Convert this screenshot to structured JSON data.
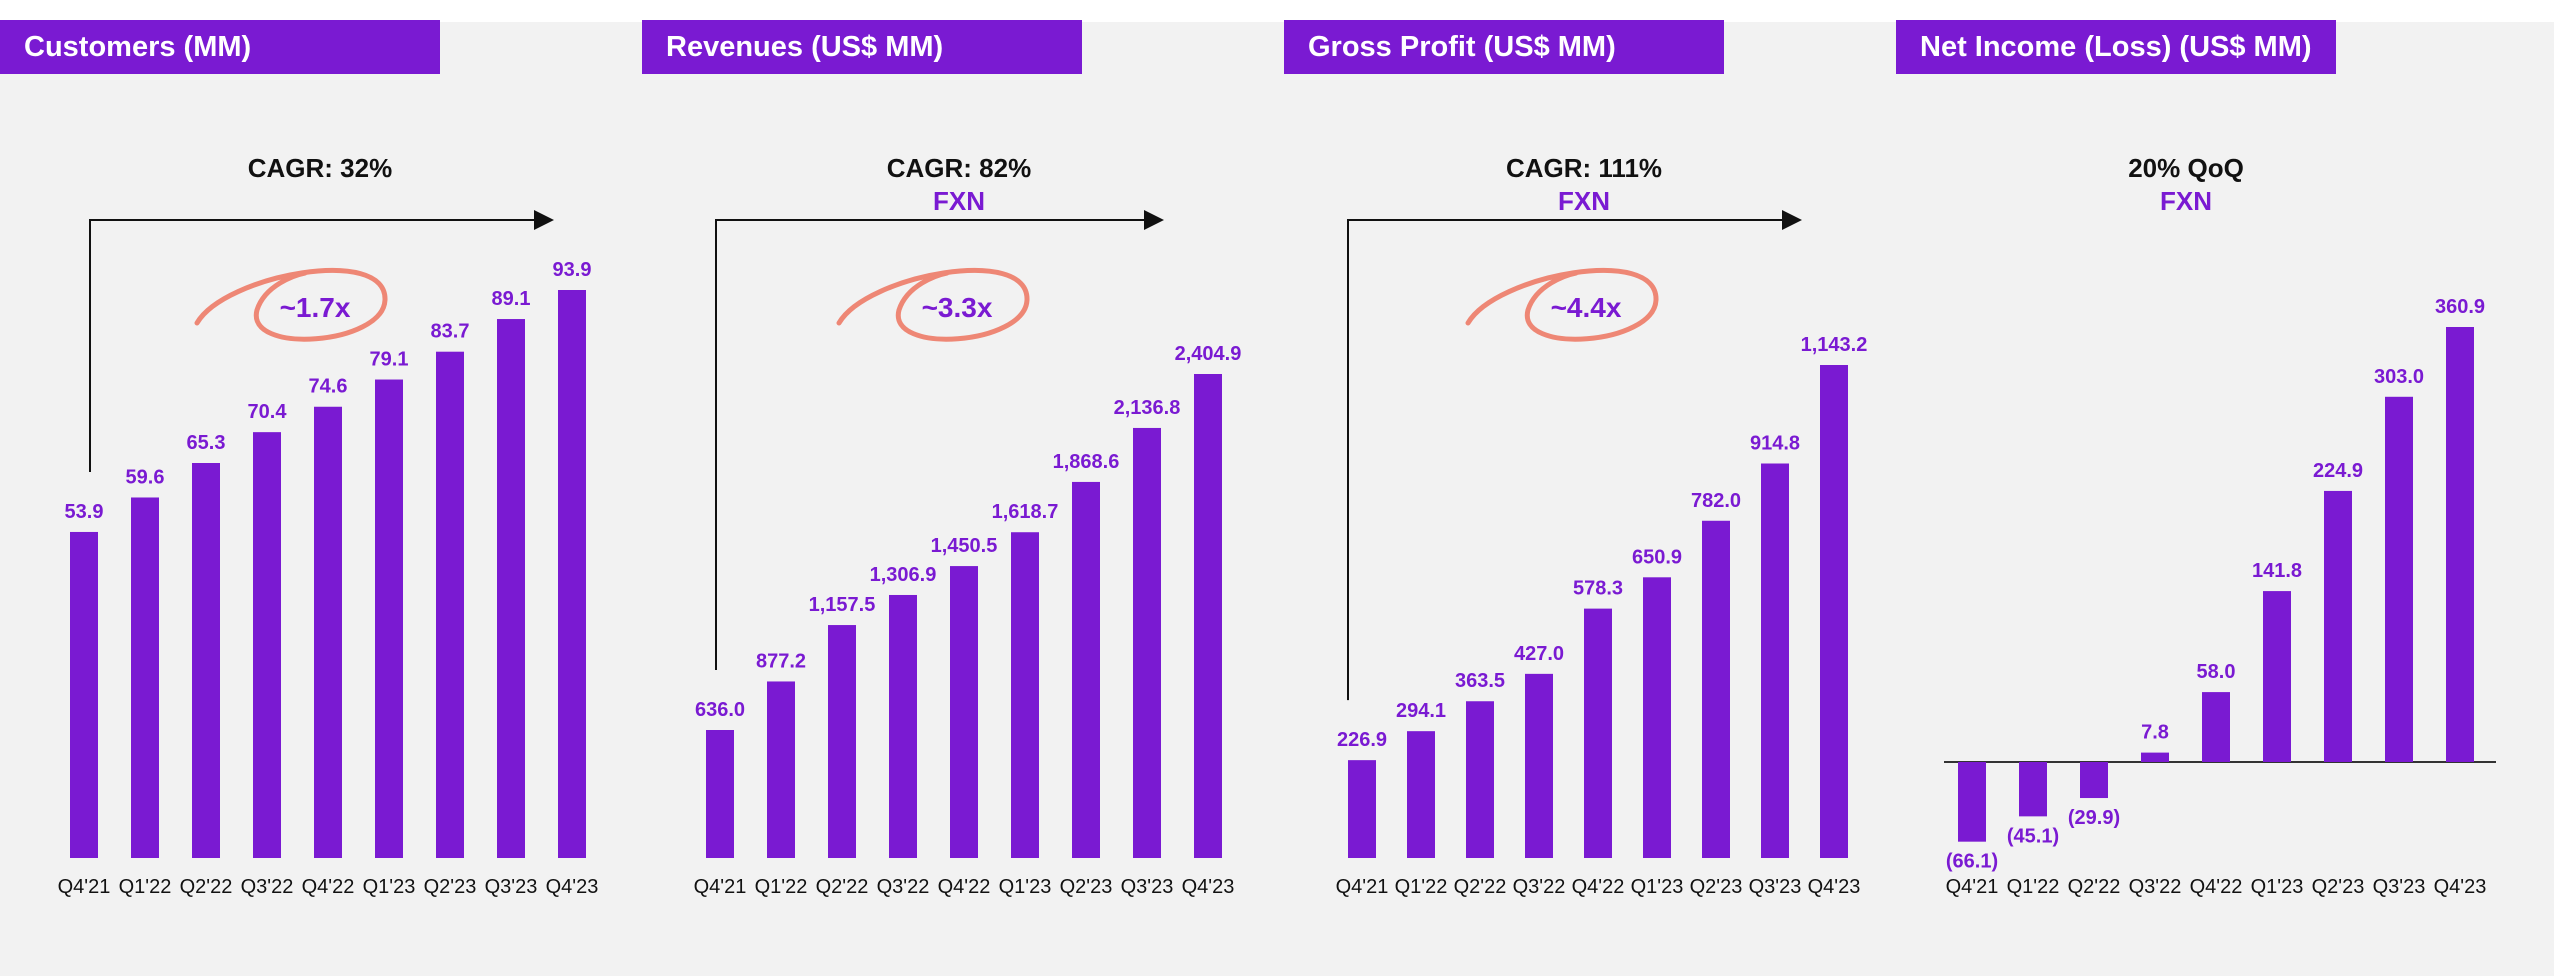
{
  "colors": {
    "bar": "#7a1ad2",
    "label": "#7a1ad2",
    "header_bg": "#7a1ad2",
    "header_text": "#ffffff",
    "scribble": "#ee8775",
    "axis": "#111111",
    "background": "#f2f2f2"
  },
  "chart_data": [
    {
      "type": "bar",
      "title": "Customers (MM)",
      "cagr_label": "CAGR: 32%",
      "sub_label": "",
      "multiplier": "~1.7x",
      "categories": [
        "Q4'21",
        "Q1'22",
        "Q2'22",
        "Q3'22",
        "Q4'22",
        "Q1'23",
        "Q2'23",
        "Q3'23",
        "Q4'23"
      ],
      "values": [
        53.9,
        59.6,
        65.3,
        70.4,
        74.6,
        79.1,
        83.7,
        89.1,
        93.9
      ],
      "value_labels": [
        "53.9",
        "59.6",
        "65.3",
        "70.4",
        "74.6",
        "79.1",
        "83.7",
        "89.1",
        "93.9"
      ],
      "ylim": [
        0,
        100
      ]
    },
    {
      "type": "bar",
      "title": "Revenues (US$ MM)",
      "cagr_label": "CAGR: 82%",
      "sub_label": "FXN",
      "multiplier": "~3.3x",
      "categories": [
        "Q4'21",
        "Q1'22",
        "Q2'22",
        "Q3'22",
        "Q4'22",
        "Q1'23",
        "Q2'23",
        "Q3'23",
        "Q4'23"
      ],
      "values": [
        636.0,
        877.2,
        1157.5,
        1306.9,
        1450.5,
        1618.7,
        1868.6,
        2136.8,
        2404.9
      ],
      "value_labels": [
        "636.0",
        "877.2",
        "1,157.5",
        "1,306.9",
        "1,450.5",
        "1,618.7",
        "1,868.6",
        "2,136.8",
        "2,404.9"
      ],
      "ylim": [
        0,
        2700
      ]
    },
    {
      "type": "bar",
      "title": "Gross Profit (US$ MM)",
      "cagr_label": "CAGR: 111%",
      "sub_label": "FXN",
      "multiplier": "~4.4x",
      "categories": [
        "Q4'21",
        "Q1'22",
        "Q2'22",
        "Q3'22",
        "Q4'22",
        "Q1'23",
        "Q2'23",
        "Q3'23",
        "Q4'23"
      ],
      "values": [
        226.9,
        294.1,
        363.5,
        427.0,
        578.3,
        650.9,
        782.0,
        914.8,
        1143.2
      ],
      "value_labels": [
        "226.9",
        "294.1",
        "363.5",
        "427.0",
        "578.3",
        "650.9",
        "782.0",
        "914.8",
        "1,143.2"
      ],
      "ylim": [
        0,
        1300
      ]
    },
    {
      "type": "bar",
      "title": "Net Income (Loss) (US$ MM)",
      "cagr_label": "20% QoQ",
      "sub_label": "FXN",
      "multiplier": "",
      "categories": [
        "Q4'21",
        "Q1'22",
        "Q2'22",
        "Q3'22",
        "Q4'22",
        "Q1'23",
        "Q2'23",
        "Q3'23",
        "Q4'23"
      ],
      "values": [
        -66.1,
        -45.1,
        -29.9,
        7.8,
        58.0,
        141.8,
        224.9,
        303.0,
        360.9
      ],
      "value_labels": [
        "(66.1)",
        "(45.1)",
        "(29.9)",
        "7.8",
        "58.0",
        "141.8",
        "224.9",
        "303.0",
        "360.9"
      ],
      "ylim": [
        -80,
        400
      ]
    }
  ]
}
